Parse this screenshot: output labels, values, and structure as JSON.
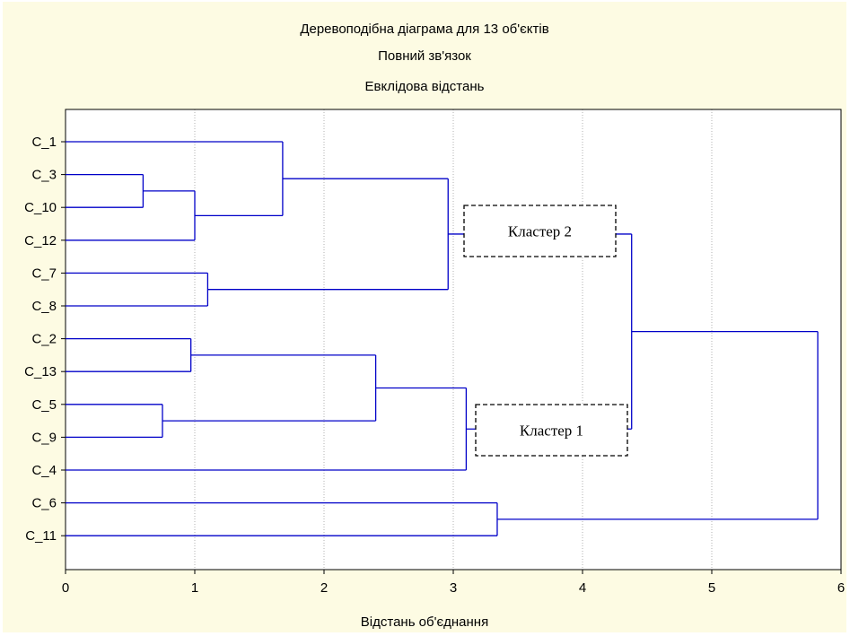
{
  "chart_data": {
    "type": "dendrogram",
    "title": "Деревоподібна діаграма для 13 об'єктів",
    "subtitle_1": "Повний зв'язок",
    "subtitle_2": "Евклідова відстань",
    "xlabel": "Відстань об'єднання",
    "xlim": [
      0,
      6
    ],
    "x_ticks": [
      "0",
      "1",
      "2",
      "3",
      "4",
      "5",
      "6"
    ],
    "grid": "vertical dotted",
    "leaves": [
      "C_1",
      "C_3",
      "C_10",
      "C_12",
      "C_7",
      "C_8",
      "C_2",
      "C_13",
      "C_5",
      "C_9",
      "C_4",
      "C_6",
      "C_11"
    ],
    "merges": [
      {
        "left": "C_3",
        "right": "C_10",
        "height": 0.6
      },
      {
        "left": "C_5",
        "right": "C_9",
        "height": 0.75
      },
      {
        "left": "C_2",
        "right": "C_13",
        "height": 0.97
      },
      {
        "left": "(C_3,C_10)",
        "right": "C_12",
        "height": 1.0
      },
      {
        "left": "C_7",
        "right": "C_8",
        "height": 1.1
      },
      {
        "left": "C_1",
        "right": "(C_3,C_10,C_12)",
        "height": 1.68
      },
      {
        "left": "(C_2,C_13)",
        "right": "(C_5,C_9)",
        "height": 2.4
      },
      {
        "left": "(C_1,C_3,C_10,C_12)",
        "right": "(C_7,C_8)",
        "height": 2.96
      },
      {
        "left": "(C_2,C_13,C_5,C_9)",
        "right": "C_4",
        "height": 3.1
      },
      {
        "left": "C_6",
        "right": "C_11",
        "height": 3.34
      },
      {
        "left": "(C_1,C_3,C_10,C_12,C_7,C_8)",
        "right": "(C_2,C_13,C_5,C_9,C_4)",
        "height": 4.38
      },
      {
        "left": "(C_1,...,C_4)",
        "right": "(C_6,C_11)",
        "height": 5.82
      }
    ],
    "annotations": [
      "Кластер 2",
      "Кластер 1"
    ],
    "line_color": "#0000c8",
    "background_color": "#fdfbe3"
  }
}
